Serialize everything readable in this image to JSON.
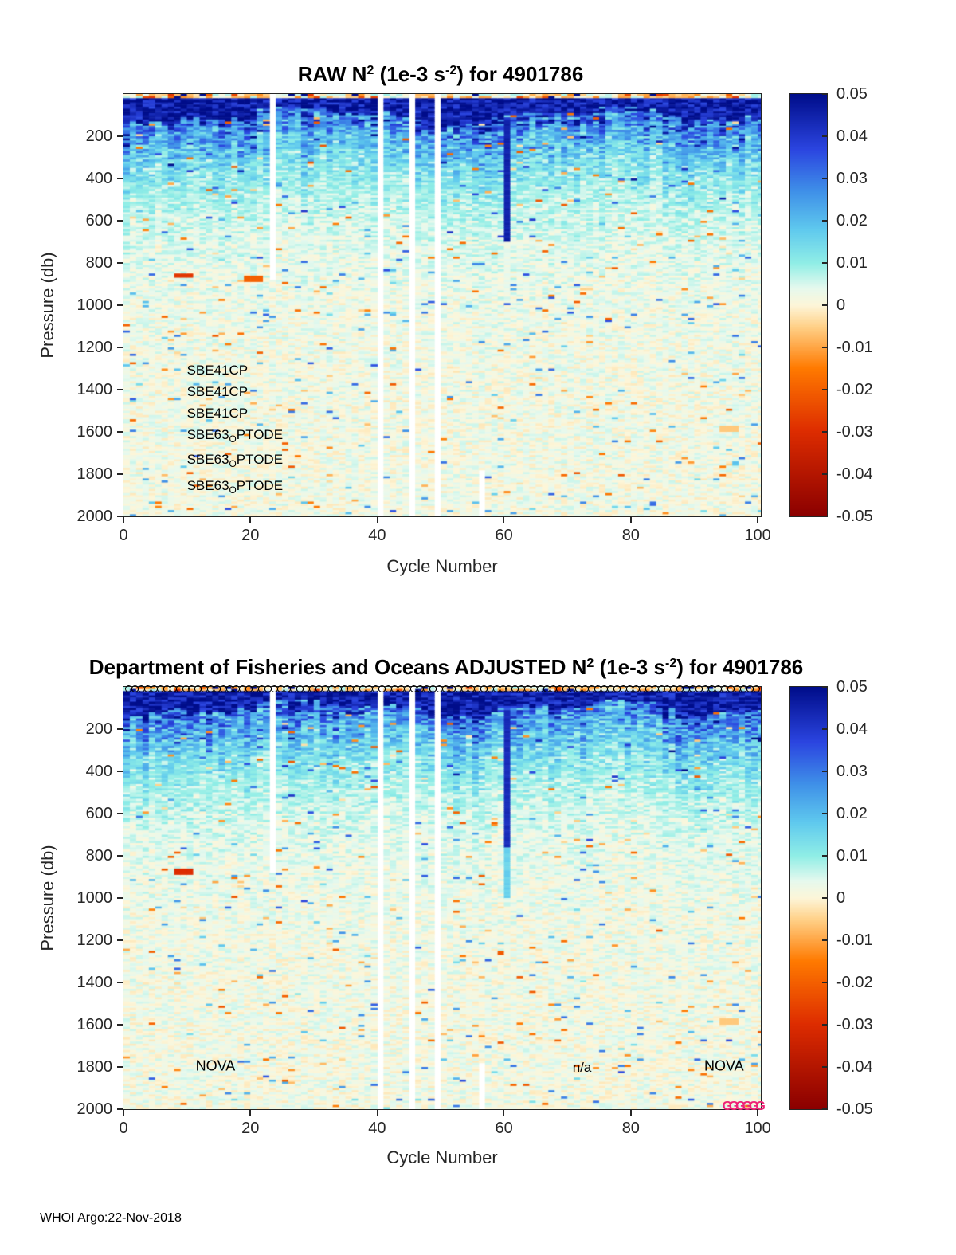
{
  "footer": {
    "credit": "WHOI Argo:22-Nov-2018"
  },
  "colormap": {
    "stops": [
      [
        -0.05,
        "#8b0000"
      ],
      [
        -0.03,
        "#dd2c00"
      ],
      [
        -0.015,
        "#ff7a00"
      ],
      [
        -0.005,
        "#ffd28a"
      ],
      [
        0.0,
        "#fdf6d9"
      ],
      [
        0.004,
        "#e6f9ee"
      ],
      [
        0.01,
        "#90eee6"
      ],
      [
        0.018,
        "#5fc9ee"
      ],
      [
        0.027,
        "#3f90e8"
      ],
      [
        0.037,
        "#2b45e0"
      ],
      [
        0.05,
        "#000d8a"
      ]
    ]
  },
  "chart_data": [
    {
      "type": "heatmap",
      "title": "RAW N2 (1e-3 s-2) for 4901786",
      "title_parts": [
        "RAW N",
        "2",
        " (1e-3 s",
        "-2",
        ") for 4901786"
      ],
      "xlabel": "Cycle Number",
      "ylabel": "Pressure (db)",
      "xlim": [
        0,
        100.5
      ],
      "ylim": [
        0,
        2000
      ],
      "y_axis_reversed": true,
      "x_ticks": [
        0,
        20,
        40,
        60,
        80,
        100
      ],
      "y_ticks": [
        200,
        400,
        600,
        800,
        1000,
        1200,
        1400,
        1600,
        1800,
        2000
      ],
      "colorbar": {
        "min": -0.05,
        "max": 0.05,
        "ticks": [
          0.05,
          0.04,
          0.03,
          0.02,
          0.01,
          0,
          -0.01,
          -0.02,
          -0.03,
          -0.04,
          -0.05
        ],
        "tick_labels": [
          "0.05",
          "0.04",
          "0.03",
          "0.02",
          "0.01",
          "0",
          "-0.01",
          "-0.02",
          "-0.03",
          "-0.04",
          "-0.05"
        ]
      },
      "pattern": {
        "seed": 20181122,
        "columns": 101,
        "rows_db": 10,
        "surface_layer": {
          "to_db": 14,
          "base": -0.002,
          "noise": 0.011
        },
        "pycnocline": {
          "mean_depth_db": 95,
          "wave1_amp": 32,
          "wave1_period": 7.5,
          "wave1_phase": 0.8,
          "wave2_amp": 18,
          "wave2_period": 2.9,
          "wave2_phase": 2.0,
          "jitter": 12,
          "value": 0.046,
          "value_noise": 0.01
        },
        "deep": {
          "base": 0.002,
          "decay_amp": 0.03,
          "decay_scale_db": 230,
          "noise": 0.004,
          "neg_speckle_prob": 0.012,
          "pos_speckle_prob": 0.015
        }
      },
      "missing_columns": [
        {
          "cycle": 24,
          "p_from": 0,
          "p_to": 880
        },
        {
          "cycle": 41,
          "p_from": 0,
          "p_to": 2000
        },
        {
          "cycle": 45.5,
          "p_from": 0,
          "p_to": 2000
        },
        {
          "cycle": 49.5,
          "p_from": 0,
          "p_to": 2000
        },
        {
          "cycle": 57,
          "p_from": 1780,
          "p_to": 2000
        }
      ],
      "streaks": [
        {
          "cycle": 61,
          "p_from": 120,
          "p_to": 700,
          "value": 0.045
        },
        {
          "cycle": 61,
          "p_from": 700,
          "p_to": 950,
          "value": 0.003
        }
      ],
      "speckles": [
        {
          "cycle": 10,
          "p": 855,
          "value": -0.028
        },
        {
          "cycle": 21,
          "p": 872,
          "value": -0.02
        },
        {
          "cycle": 96,
          "p": 1578,
          "value": -0.006
        }
      ],
      "annotations": [
        {
          "x": 10,
          "p": 1310,
          "align": "left",
          "size": 17,
          "parts": [
            {
              "t": "SBE41CP"
            }
          ]
        },
        {
          "x": 10,
          "p": 1413,
          "align": "left",
          "size": 17,
          "parts": [
            {
              "t": "SBE41CP"
            }
          ]
        },
        {
          "x": 10,
          "p": 1515,
          "align": "left",
          "size": 17,
          "parts": [
            {
              "t": "SBE41CP"
            }
          ]
        },
        {
          "x": 10,
          "p": 1617,
          "align": "left",
          "size": 17,
          "parts": [
            {
              "t": "SBE63"
            },
            {
              "t": "O",
              "sub": true
            },
            {
              "t": "PTODE"
            }
          ]
        },
        {
          "x": 10,
          "p": 1735,
          "align": "left",
          "size": 17,
          "parts": [
            {
              "t": "SBE63"
            },
            {
              "t": "O",
              "sub": true
            },
            {
              "t": "PTODE"
            }
          ]
        },
        {
          "x": 10,
          "p": 1860,
          "align": "left",
          "size": 17,
          "parts": [
            {
              "t": "SBE63"
            },
            {
              "t": "O",
              "sub": true
            },
            {
              "t": "PTODE"
            }
          ]
        }
      ]
    },
    {
      "type": "heatmap",
      "title": "Department of Fisheries and Oceans  ADJUSTED N2 (1e-3 s-2) for 4901786",
      "title_parts": [
        "Department of Fisheries and Oceans  ADJUSTED N",
        "2",
        " (1e-3 s",
        "-2",
        ") for 4901786"
      ],
      "xlabel": "Cycle Number",
      "ylabel": "Pressure (db)",
      "xlim": [
        0,
        100.5
      ],
      "ylim": [
        0,
        2000
      ],
      "y_axis_reversed": true,
      "x_ticks": [
        0,
        20,
        40,
        60,
        80,
        100
      ],
      "y_ticks": [
        200,
        400,
        600,
        800,
        1000,
        1200,
        1400,
        1600,
        1800,
        2000
      ],
      "colorbar": {
        "min": -0.05,
        "max": 0.05,
        "ticks": [
          0.05,
          0.04,
          0.03,
          0.02,
          0.01,
          0,
          -0.01,
          -0.02,
          -0.03,
          -0.04,
          -0.05
        ],
        "tick_labels": [
          "0.05",
          "0.04",
          "0.03",
          "0.02",
          "0.01",
          "0",
          "-0.01",
          "-0.02",
          "-0.03",
          "-0.04",
          "-0.05"
        ]
      },
      "pattern": {
        "seed": 4901786,
        "columns": 101,
        "rows_db": 10,
        "surface_layer": {
          "to_db": 14,
          "base": -0.002,
          "noise": 0.011
        },
        "pycnocline": {
          "mean_depth_db": 95,
          "wave1_amp": 32,
          "wave1_period": 7.5,
          "wave1_phase": 0.8,
          "wave2_amp": 18,
          "wave2_period": 2.9,
          "wave2_phase": 2.0,
          "jitter": 12,
          "value": 0.046,
          "value_noise": 0.01
        },
        "deep": {
          "base": 0.002,
          "decay_amp": 0.03,
          "decay_scale_db": 230,
          "noise": 0.004,
          "neg_speckle_prob": 0.012,
          "pos_speckle_prob": 0.015
        }
      },
      "missing_columns": [
        {
          "cycle": 24,
          "p_from": 0,
          "p_to": 880
        },
        {
          "cycle": 41,
          "p_from": 0,
          "p_to": 2000
        },
        {
          "cycle": 45.5,
          "p_from": 0,
          "p_to": 2000
        },
        {
          "cycle": 49.5,
          "p_from": 0,
          "p_to": 2000
        },
        {
          "cycle": 57,
          "p_from": 1780,
          "p_to": 2000
        }
      ],
      "streaks": [
        {
          "cycle": 61,
          "p_from": 110,
          "p_to": 760,
          "value": 0.043
        },
        {
          "cycle": 61,
          "p_from": 760,
          "p_to": 1000,
          "value": 0.016
        }
      ],
      "speckles": [
        {
          "cycle": 10,
          "p": 872,
          "value": -0.03
        },
        {
          "cycle": 96,
          "p": 1580,
          "value": -0.006
        }
      ],
      "annotations": [
        {
          "x": 14.5,
          "p": 1795,
          "align": "center",
          "size": 18,
          "parts": [
            {
              "t": "NOVA"
            }
          ]
        },
        {
          "x": 72.3,
          "p": 1805,
          "align": "center",
          "size": 17,
          "parts": [
            {
              "t": "n/a"
            }
          ]
        },
        {
          "x": 94.7,
          "p": 1795,
          "align": "center",
          "size": 18,
          "parts": [
            {
              "t": "NOVA"
            }
          ]
        }
      ],
      "markers": {
        "circles": {
          "x_from": 0.8,
          "x_to": 100.5,
          "step": 1,
          "p": 10,
          "diameter": 9
        },
        "letters": {
          "text": "G",
          "count": 6,
          "x_start": 95.2,
          "x_step": 1.05,
          "p": 1990,
          "color": "#ee2277",
          "size": 16
        }
      }
    }
  ]
}
